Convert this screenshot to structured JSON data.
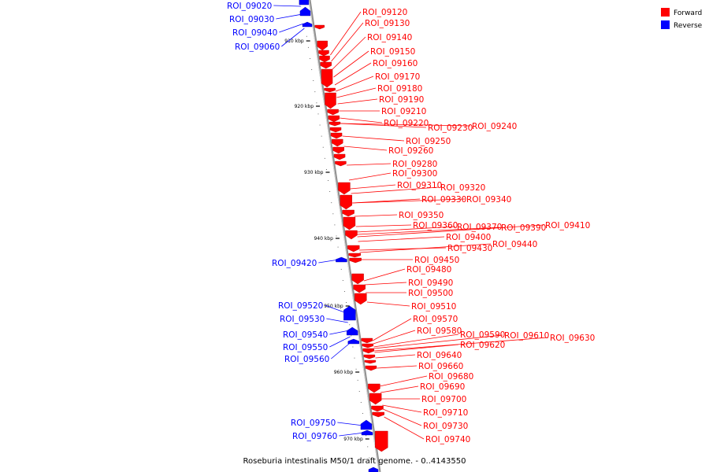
{
  "title": "Roseburia intestinalis M50/1 draft genome. - 0..4143550",
  "colors": {
    "forward": "#ff0000",
    "reverse": "#0000ff",
    "backbone": "#909090"
  },
  "legend": [
    {
      "label": "Forward",
      "strand": "forward"
    },
    {
      "label": "Reverse",
      "strand": "reverse"
    }
  ],
  "scale_ticks": [
    "910 kbp",
    "920 kbp",
    "930 kbp",
    "940 kbp",
    "950 kbp",
    "960 kbp",
    "970 kbp"
  ],
  "features": [
    {
      "name": "ROI_09020",
      "strand": "reverse"
    },
    {
      "name": "ROI_09030",
      "strand": "reverse"
    },
    {
      "name": "ROI_09040",
      "strand": "reverse"
    },
    {
      "name": "ROI_09060",
      "strand": "reverse"
    },
    {
      "name": "ROI_09120",
      "strand": "forward"
    },
    {
      "name": "ROI_09130",
      "strand": "forward"
    },
    {
      "name": "ROI_09140",
      "strand": "forward"
    },
    {
      "name": "ROI_09150",
      "strand": "forward"
    },
    {
      "name": "ROI_09160",
      "strand": "forward"
    },
    {
      "name": "ROI_09170",
      "strand": "forward"
    },
    {
      "name": "ROI_09180",
      "strand": "forward"
    },
    {
      "name": "ROI_09190",
      "strand": "forward"
    },
    {
      "name": "ROI_09210",
      "strand": "forward"
    },
    {
      "name": "ROI_09220",
      "strand": "forward"
    },
    {
      "name": "ROI_09230",
      "strand": "forward"
    },
    {
      "name": "ROI_09240",
      "strand": "forward"
    },
    {
      "name": "ROI_09250",
      "strand": "forward"
    },
    {
      "name": "ROI_09260",
      "strand": "forward"
    },
    {
      "name": "ROI_09280",
      "strand": "forward"
    },
    {
      "name": "ROI_09300",
      "strand": "forward"
    },
    {
      "name": "ROI_09310",
      "strand": "forward"
    },
    {
      "name": "ROI_09320",
      "strand": "forward"
    },
    {
      "name": "ROI_09330",
      "strand": "forward"
    },
    {
      "name": "ROI_09340",
      "strand": "forward"
    },
    {
      "name": "ROI_09350",
      "strand": "forward"
    },
    {
      "name": "ROI_09360",
      "strand": "forward"
    },
    {
      "name": "ROI_09370",
      "strand": "forward"
    },
    {
      "name": "ROI_09390",
      "strand": "forward"
    },
    {
      "name": "ROI_09410",
      "strand": "forward"
    },
    {
      "name": "ROI_09400",
      "strand": "forward"
    },
    {
      "name": "ROI_09430",
      "strand": "forward"
    },
    {
      "name": "ROI_09440",
      "strand": "forward"
    },
    {
      "name": "ROI_09420",
      "strand": "reverse"
    },
    {
      "name": "ROI_09450",
      "strand": "forward"
    },
    {
      "name": "ROI_09480",
      "strand": "forward"
    },
    {
      "name": "ROI_09490",
      "strand": "forward"
    },
    {
      "name": "ROI_09500",
      "strand": "forward"
    },
    {
      "name": "ROI_09510",
      "strand": "forward"
    },
    {
      "name": "ROI_09520",
      "strand": "reverse"
    },
    {
      "name": "ROI_09530",
      "strand": "reverse"
    },
    {
      "name": "ROI_09540",
      "strand": "reverse"
    },
    {
      "name": "ROI_09550",
      "strand": "reverse"
    },
    {
      "name": "ROI_09560",
      "strand": "reverse"
    },
    {
      "name": "ROI_09570",
      "strand": "forward"
    },
    {
      "name": "ROI_09580",
      "strand": "forward"
    },
    {
      "name": "ROI_09590",
      "strand": "forward"
    },
    {
      "name": "ROI_09610",
      "strand": "forward"
    },
    {
      "name": "ROI_09630",
      "strand": "forward"
    },
    {
      "name": "ROI_09620",
      "strand": "forward"
    },
    {
      "name": "ROI_09640",
      "strand": "forward"
    },
    {
      "name": "ROI_09660",
      "strand": "forward"
    },
    {
      "name": "ROI_09680",
      "strand": "forward"
    },
    {
      "name": "ROI_09690",
      "strand": "forward"
    },
    {
      "name": "ROI_09700",
      "strand": "forward"
    },
    {
      "name": "ROI_09710",
      "strand": "forward"
    },
    {
      "name": "ROI_09730",
      "strand": "forward"
    },
    {
      "name": "ROI_09740",
      "strand": "forward"
    },
    {
      "name": "ROI_09750",
      "strand": "reverse"
    },
    {
      "name": "ROI_09760",
      "strand": "reverse"
    }
  ]
}
